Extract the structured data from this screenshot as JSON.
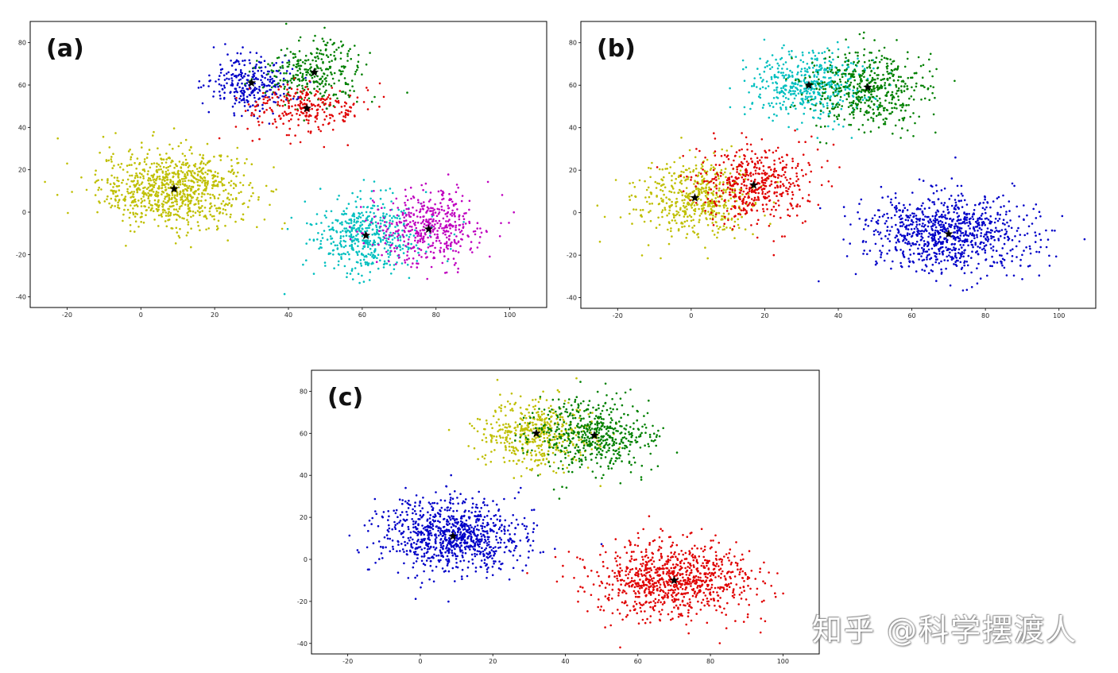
{
  "chart_data": [
    {
      "type": "scatter",
      "label": "(a)",
      "title": "",
      "xlabel": "",
      "ylabel": "",
      "xlim": [
        -30,
        110
      ],
      "ylim": [
        -45,
        90
      ],
      "xticks": [
        -20,
        0,
        20,
        40,
        60,
        80,
        100
      ],
      "yticks": [
        -40,
        -20,
        0,
        20,
        40,
        60,
        80
      ],
      "series": [
        {
          "name": "cluster-yellow",
          "color": "#bfbf00",
          "center": [
            9,
            11
          ],
          "spread": [
            10,
            9
          ],
          "points": 900
        },
        {
          "name": "cluster-blue",
          "color": "#0000c8",
          "center": [
            30,
            61
          ],
          "spread": [
            6,
            7
          ],
          "points": 280
        },
        {
          "name": "cluster-green",
          "color": "#008000",
          "center": [
            47,
            66
          ],
          "spread": [
            7,
            7
          ],
          "points": 300
        },
        {
          "name": "cluster-red",
          "color": "#e00000",
          "center": [
            45,
            49
          ],
          "spread": [
            8,
            6
          ],
          "points": 260
        },
        {
          "name": "cluster-cyan",
          "color": "#00bfbf",
          "center": [
            61,
            -11
          ],
          "spread": [
            7,
            9
          ],
          "points": 480
        },
        {
          "name": "cluster-magenta",
          "color": "#bf00bf",
          "center": [
            78,
            -8
          ],
          "spread": [
            8,
            9
          ],
          "points": 450
        }
      ],
      "centroids": [
        [
          9,
          11
        ],
        [
          30,
          61
        ],
        [
          47,
          66
        ],
        [
          45,
          49
        ],
        [
          61,
          -11
        ],
        [
          78,
          -8
        ]
      ]
    },
    {
      "type": "scatter",
      "label": "(b)",
      "title": "",
      "xlabel": "",
      "ylabel": "",
      "xlim": [
        -30,
        110
      ],
      "ylim": [
        -45,
        90
      ],
      "xticks": [
        -20,
        0,
        20,
        40,
        60,
        80,
        100
      ],
      "yticks": [
        -40,
        -20,
        0,
        20,
        40,
        60,
        80
      ],
      "series": [
        {
          "name": "cluster-yellow",
          "color": "#bfbf00",
          "center": [
            1,
            7
          ],
          "spread": [
            8,
            9
          ],
          "points": 520
        },
        {
          "name": "cluster-red",
          "color": "#e00000",
          "center": [
            17,
            13
          ],
          "spread": [
            8,
            9
          ],
          "points": 480
        },
        {
          "name": "cluster-cyan",
          "color": "#00bfbf",
          "center": [
            32,
            60
          ],
          "spread": [
            8,
            8
          ],
          "points": 480
        },
        {
          "name": "cluster-green",
          "color": "#008000",
          "center": [
            48,
            59
          ],
          "spread": [
            8,
            9
          ],
          "points": 520
        },
        {
          "name": "cluster-blue",
          "color": "#0000c8",
          "center": [
            70,
            -10
          ],
          "spread": [
            11,
            9
          ],
          "points": 900
        }
      ],
      "centroids": [
        [
          1,
          7
        ],
        [
          17,
          13
        ],
        [
          32,
          60
        ],
        [
          48,
          59
        ],
        [
          70,
          -10
        ]
      ]
    },
    {
      "type": "scatter",
      "label": "(c)",
      "title": "",
      "xlabel": "",
      "ylabel": "",
      "xlim": [
        -30,
        110
      ],
      "ylim": [
        -45,
        90
      ],
      "xticks": [
        -20,
        0,
        20,
        40,
        60,
        80,
        100
      ],
      "yticks": [
        -40,
        -20,
        0,
        20,
        40,
        60,
        80
      ],
      "series": [
        {
          "name": "cluster-blue",
          "color": "#0000c8",
          "center": [
            9,
            11
          ],
          "spread": [
            10,
            9
          ],
          "points": 900
        },
        {
          "name": "cluster-yellow",
          "color": "#bfbf00",
          "center": [
            32,
            60
          ],
          "spread": [
            8,
            8
          ],
          "points": 480
        },
        {
          "name": "cluster-green",
          "color": "#008000",
          "center": [
            48,
            59
          ],
          "spread": [
            8,
            9
          ],
          "points": 520
        },
        {
          "name": "cluster-red",
          "color": "#e00000",
          "center": [
            70,
            -10
          ],
          "spread": [
            11,
            9
          ],
          "points": 900
        }
      ],
      "centroids": [
        [
          9,
          11
        ],
        [
          32,
          60
        ],
        [
          48,
          59
        ],
        [
          70,
          -10
        ]
      ]
    }
  ],
  "watermark": "知乎 @科学摆渡人"
}
